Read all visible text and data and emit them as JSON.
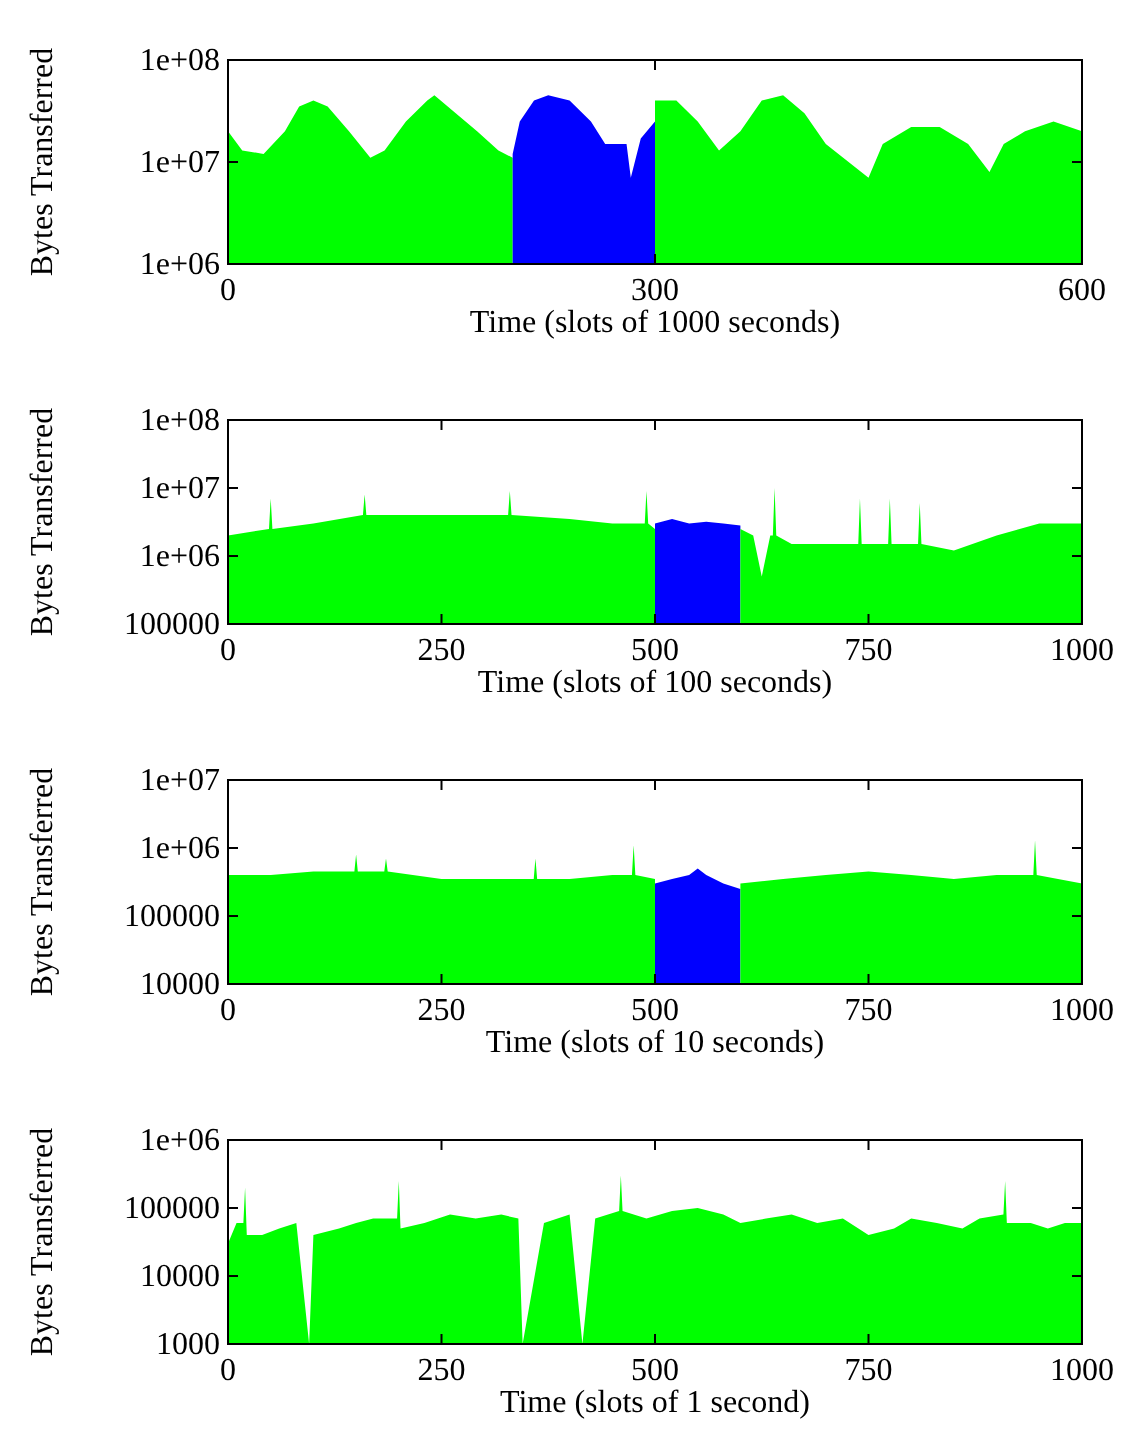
{
  "chart_data": [
    {
      "type": "area",
      "xlabel": "Time (slots of 1000 seconds)",
      "ylabel": "Bytes Transferred",
      "log": true,
      "xlim": [
        0,
        600
      ],
      "xticks": [
        0,
        300,
        600
      ],
      "ylim": [
        1000000,
        100000000
      ],
      "yticks": [
        {
          "value": 1000000,
          "label": "1e+06"
        },
        {
          "value": 10000000,
          "label": "1e+07"
        },
        {
          "value": 100000000,
          "label": "1e+08"
        }
      ],
      "series": [
        {
          "color": "#00ff00",
          "x": [
            0,
            10,
            25,
            40,
            50,
            60,
            70,
            85,
            100,
            110,
            125,
            140,
            145,
            160,
            175,
            190,
            200
          ],
          "values": [
            20000000,
            13000000,
            12000000,
            20000000,
            35000000,
            40000000,
            35000000,
            20000000,
            11000000,
            13000000,
            25000000,
            40000000,
            45000000,
            30000000,
            20000000,
            13000000,
            11000000
          ]
        },
        {
          "color": "#0000ff",
          "x": [
            200,
            205,
            215,
            225,
            240,
            255,
            265,
            280,
            283,
            290,
            300
          ],
          "values": [
            12000000,
            25000000,
            40000000,
            45000000,
            40000000,
            25000000,
            15000000,
            15000000,
            7000000,
            17000000,
            25000000
          ]
        },
        {
          "color": "#00ff00",
          "x": [
            300,
            315,
            330,
            345,
            360,
            375,
            390,
            405,
            420,
            450,
            460,
            480,
            500,
            520,
            535,
            545,
            560,
            580,
            600
          ],
          "values": [
            40000000,
            40000000,
            25000000,
            13000000,
            20000000,
            40000000,
            45000000,
            30000000,
            15000000,
            7000000,
            15000000,
            22000000,
            22000000,
            15000000,
            8000000,
            15000000,
            20000000,
            25000000,
            20000000
          ]
        }
      ]
    },
    {
      "type": "area",
      "xlabel": "Time (slots of 100 seconds)",
      "ylabel": "Bytes Transferred",
      "log": true,
      "xlim": [
        0,
        1000
      ],
      "xticks": [
        0,
        250,
        500,
        750,
        1000
      ],
      "ylim": [
        100000,
        100000000
      ],
      "yticks": [
        100000,
        {
          "value": 1000000,
          "label": "1e+06"
        },
        {
          "value": 10000000,
          "label": "1e+07"
        },
        {
          "value": 100000000,
          "label": "1e+08"
        }
      ],
      "series": [
        {
          "color": "#00ff00",
          "x": [
            0,
            20,
            48,
            50,
            52,
            100,
            158,
            160,
            162,
            200,
            250,
            300,
            328,
            330,
            332,
            400,
            450,
            488,
            490,
            492,
            500
          ],
          "values": [
            2000000,
            2200000,
            2500000,
            7000000,
            2500000,
            3000000,
            4000000,
            8000000,
            4000000,
            4000000,
            4000000,
            4000000,
            4000000,
            9000000,
            4000000,
            3500000,
            3000000,
            3000000,
            9000000,
            3000000,
            2500000
          ]
        },
        {
          "color": "#0000ff",
          "x": [
            500,
            520,
            540,
            560,
            580,
            600
          ],
          "values": [
            3000000,
            3500000,
            3000000,
            3200000,
            3000000,
            2800000
          ]
        },
        {
          "color": "#00ff00",
          "x": [
            600,
            615,
            625,
            635,
            638,
            640,
            642,
            660,
            700,
            738,
            740,
            742,
            773,
            775,
            777,
            808,
            810,
            812,
            850,
            900,
            950,
            1000
          ],
          "values": [
            2500000,
            2000000,
            500000,
            2000000,
            2000000,
            10000000,
            2000000,
            1500000,
            1500000,
            1500000,
            7000000,
            1500000,
            1500000,
            7000000,
            1500000,
            1500000,
            6000000,
            1500000,
            1200000,
            2000000,
            3000000,
            3000000
          ]
        }
      ]
    },
    {
      "type": "area",
      "xlabel": "Time (slots of 10 seconds)",
      "ylabel": "Bytes Transferred",
      "log": true,
      "xlim": [
        0,
        1000
      ],
      "xticks": [
        0,
        250,
        500,
        750,
        1000
      ],
      "ylim": [
        10000,
        10000000
      ],
      "yticks": [
        10000,
        100000,
        {
          "value": 1000000,
          "label": "1e+06"
        },
        {
          "value": 10000000,
          "label": "1e+07"
        }
      ],
      "series": [
        {
          "color": "#00ff00",
          "x": [
            0,
            50,
            100,
            148,
            150,
            152,
            183,
            185,
            187,
            250,
            300,
            358,
            360,
            362,
            400,
            450,
            473,
            475,
            477,
            500
          ],
          "values": [
            400000,
            400000,
            450000,
            450000,
            800000,
            450000,
            450000,
            700000,
            450000,
            350000,
            350000,
            350000,
            700000,
            350000,
            350000,
            400000,
            400000,
            1100000,
            400000,
            350000
          ]
        },
        {
          "color": "#0000ff",
          "x": [
            500,
            520,
            540,
            550,
            560,
            580,
            600
          ],
          "values": [
            300000,
            350000,
            400000,
            500000,
            400000,
            300000,
            250000
          ]
        },
        {
          "color": "#00ff00",
          "x": [
            600,
            650,
            700,
            750,
            800,
            850,
            900,
            943,
            945,
            947,
            1000
          ],
          "values": [
            300000,
            350000,
            400000,
            450000,
            400000,
            350000,
            400000,
            400000,
            1300000,
            400000,
            300000
          ]
        }
      ]
    },
    {
      "type": "area",
      "xlabel": "Time (slots of 1 second)",
      "ylabel": "Bytes Transferred",
      "log": true,
      "xlim": [
        0,
        1000
      ],
      "xticks": [
        0,
        250,
        500,
        750,
        1000
      ],
      "ylim": [
        1000,
        1000000
      ],
      "yticks": [
        1000,
        10000,
        100000,
        {
          "value": 1000000,
          "label": "1e+06"
        }
      ],
      "series": [
        {
          "color": "#00ff00",
          "x": [
            0,
            10,
            18,
            20,
            22,
            40,
            60,
            80,
            95,
            100,
            130,
            150,
            170,
            198,
            200,
            202,
            230,
            260,
            290,
            320,
            340,
            345,
            370,
            400,
            415,
            430,
            458,
            460,
            462,
            490,
            520,
            550,
            580,
            600,
            630,
            660,
            690,
            720,
            750,
            780,
            800,
            830,
            860,
            880,
            908,
            910,
            912,
            940,
            960,
            980,
            1000
          ],
          "values": [
            30000,
            60000,
            60000,
            200000,
            40000,
            40000,
            50000,
            60000,
            1000,
            40000,
            50000,
            60000,
            70000,
            70000,
            250000,
            50000,
            60000,
            80000,
            70000,
            80000,
            70000,
            1000,
            60000,
            80000,
            1000,
            70000,
            90000,
            300000,
            90000,
            70000,
            90000,
            100000,
            80000,
            60000,
            70000,
            80000,
            60000,
            70000,
            40000,
            50000,
            70000,
            60000,
            50000,
            70000,
            80000,
            250000,
            60000,
            60000,
            50000,
            60000,
            60000
          ]
        }
      ]
    }
  ]
}
